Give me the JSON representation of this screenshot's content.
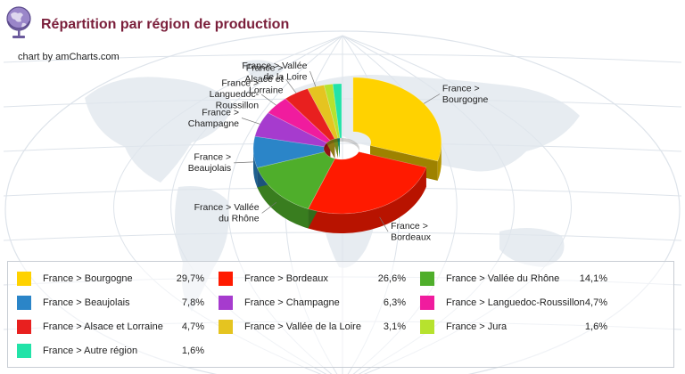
{
  "header": {
    "title": "Répartition par région de production",
    "credit": "chart by amCharts.com",
    "icon": "globe-icon"
  },
  "chart_data": {
    "type": "pie",
    "style": "3d-donut",
    "legend_position": "bottom",
    "slices": [
      {
        "name": "France > Bourgogne",
        "value": 29.7,
        "display": "29,7%",
        "color": "#FFD200",
        "pulled": true,
        "label_lines": [
          "France >",
          "Bourgogne"
        ]
      },
      {
        "name": "France > Bordeaux",
        "value": 26.6,
        "display": "26,6%",
        "color": "#FF1A00",
        "pulled": false,
        "label_lines": [
          "France >",
          "Bordeaux"
        ]
      },
      {
        "name": "France > Vallée du Rhône",
        "value": 14.1,
        "display": "14,1%",
        "color": "#4FAE2B",
        "pulled": false,
        "label_lines": [
          "France > Vallée",
          "du Rhône"
        ]
      },
      {
        "name": "France > Beaujolais",
        "value": 7.8,
        "display": "7,8%",
        "color": "#2B85C8",
        "pulled": false,
        "label_lines": [
          "France >",
          "Beaujolais"
        ]
      },
      {
        "name": "France > Champagne",
        "value": 6.3,
        "display": "6,3%",
        "color": "#A63BCE",
        "pulled": false,
        "label_lines": [
          "France >",
          "Champagne"
        ]
      },
      {
        "name": "France > Languedoc-Roussillon",
        "value": 4.7,
        "display": "4,7%",
        "color": "#F01C9E",
        "pulled": false,
        "label_lines": [
          "France >",
          "Languedoc-",
          "Roussillon"
        ]
      },
      {
        "name": "France > Alsace et Lorraine",
        "value": 4.7,
        "display": "4,7%",
        "color": "#E8201F",
        "pulled": false,
        "label_lines": [
          "France >",
          "Alsace et",
          "Lorraine"
        ]
      },
      {
        "name": "France > Vallée de la Loire",
        "value": 3.1,
        "display": "3,1%",
        "color": "#E5C420",
        "pulled": false,
        "label_lines": [
          "France > Vallée",
          "de la Loire"
        ]
      },
      {
        "name": "France > Jura",
        "value": 1.6,
        "display": "1,6%",
        "color": "#B7E22E",
        "pulled": false,
        "label_lines": []
      },
      {
        "name": "France > Autre région",
        "value": 1.6,
        "display": "1,6%",
        "color": "#22E3A8",
        "pulled": false,
        "label_lines": []
      }
    ]
  }
}
